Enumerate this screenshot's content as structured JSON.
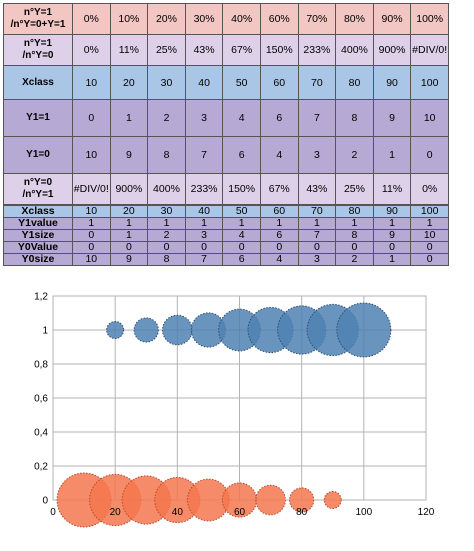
{
  "table1": {
    "rows": [
      {
        "style": "pink",
        "label": "n°Y=1 /n°Y=0+Y=1",
        "values": [
          "0%",
          "10%",
          "20%",
          "30%",
          "40%",
          "60%",
          "70%",
          "80%",
          "90%",
          "100%"
        ]
      },
      {
        "style": "lav",
        "label": "n°Y=1 /n°Y=0",
        "values": [
          "0%",
          "11%",
          "25%",
          "43%",
          "67%",
          "150%",
          "233%",
          "400%",
          "900%",
          "#DIV/0!"
        ]
      },
      {
        "style": "blue",
        "label": "Xclass",
        "values": [
          "10",
          "20",
          "30",
          "40",
          "50",
          "60",
          "70",
          "80",
          "90",
          "100"
        ]
      },
      {
        "style": "purp",
        "label": "Y1=1",
        "values": [
          "0",
          "1",
          "2",
          "3",
          "4",
          "6",
          "7",
          "8",
          "9",
          "10"
        ]
      },
      {
        "style": "purp",
        "label": "Y1=0",
        "values": [
          "10",
          "9",
          "8",
          "7",
          "6",
          "4",
          "3",
          "2",
          "1",
          "0"
        ]
      },
      {
        "style": "lav",
        "label": "n°Y=0 /n°Y=1",
        "values": [
          "#DIV/0!",
          "900%",
          "400%",
          "233%",
          "150%",
          "67%",
          "43%",
          "25%",
          "11%",
          "0%"
        ]
      },
      {
        "style": "pink",
        "label": "n°Y=0 /n°Y=0+Y=1",
        "values": [
          "100%",
          "90%",
          "80%",
          "70%",
          "60%",
          "40%",
          "30%",
          "20%",
          "10%",
          "0%"
        ]
      }
    ]
  },
  "table2": {
    "rows": [
      {
        "style": "blue",
        "label": "Xclass",
        "values": [
          "10",
          "20",
          "30",
          "40",
          "50",
          "60",
          "70",
          "80",
          "90",
          "100"
        ]
      },
      {
        "style": "purp",
        "label": "Y1value",
        "values": [
          "1",
          "1",
          "1",
          "1",
          "1",
          "1",
          "1",
          "1",
          "1",
          "1"
        ]
      },
      {
        "style": "purp",
        "label": "Y1size",
        "values": [
          "0",
          "1",
          "2",
          "3",
          "4",
          "6",
          "7",
          "8",
          "9",
          "10"
        ]
      },
      {
        "style": "purp",
        "label": "Y0Value",
        "values": [
          "0",
          "0",
          "0",
          "0",
          "0",
          "0",
          "0",
          "0",
          "0",
          "0"
        ]
      },
      {
        "style": "purp",
        "label": "Y0size",
        "values": [
          "10",
          "9",
          "8",
          "7",
          "6",
          "4",
          "3",
          "2",
          "1",
          "0"
        ]
      }
    ]
  },
  "chart_data": {
    "type": "scatter",
    "bubble": true,
    "xlim": [
      0,
      120
    ],
    "ylim": [
      0,
      1.2
    ],
    "x_ticks": [
      "0",
      "20",
      "40",
      "60",
      "80",
      "100",
      "120"
    ],
    "y_ticks": [
      "0",
      "0,2",
      "0,4",
      "0,6",
      "0,8",
      "1",
      "1,2"
    ],
    "grid": true,
    "series": [
      {
        "x": [
          10,
          20,
          30,
          40,
          50,
          60,
          70,
          80,
          90,
          100
        ],
        "y": [
          1,
          1,
          1,
          1,
          1,
          1,
          1,
          1,
          1,
          1
        ],
        "size": [
          0,
          1,
          2,
          3,
          4,
          6,
          7,
          8,
          9,
          10
        ],
        "fill": "#4f81b3",
        "stroke": "#2f4f73"
      },
      {
        "x": [
          10,
          20,
          30,
          40,
          50,
          60,
          70,
          80,
          90,
          100
        ],
        "y": [
          0,
          0,
          0,
          0,
          0,
          0,
          0,
          0,
          0,
          0
        ],
        "size": [
          10,
          9,
          8,
          7,
          6,
          4,
          3,
          2,
          1,
          0
        ],
        "fill": "#f4774f",
        "stroke": "#b54a2e"
      }
    ]
  }
}
